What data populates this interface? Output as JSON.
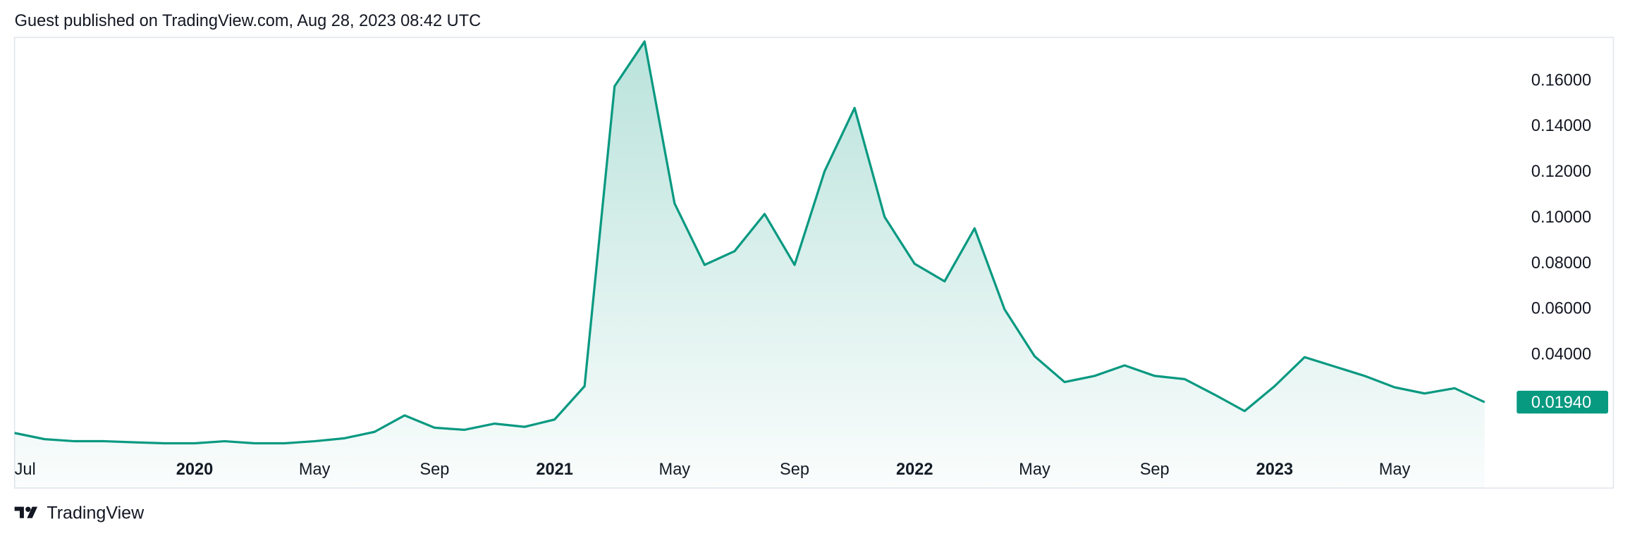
{
  "header": {
    "title": "Guest published on TradingView.com, Aug 28, 2023 08:42 UTC"
  },
  "chart_data": {
    "type": "area",
    "x": [
      "2019-07",
      "2019-08",
      "2019-09",
      "2019-10",
      "2019-11",
      "2019-12",
      "2020-01",
      "2020-02",
      "2020-03",
      "2020-04",
      "2020-05",
      "2020-06",
      "2020-07",
      "2020-08",
      "2020-09",
      "2020-10",
      "2020-11",
      "2020-12",
      "2021-01",
      "2021-02",
      "2021-03",
      "2021-04",
      "2021-05",
      "2021-06",
      "2021-07",
      "2021-08",
      "2021-09",
      "2021-10",
      "2021-11",
      "2021-12",
      "2022-01",
      "2022-02",
      "2022-03",
      "2022-04",
      "2022-05",
      "2022-06",
      "2022-07",
      "2022-08",
      "2022-09",
      "2022-10",
      "2022-11",
      "2022-12",
      "2023-01",
      "2023-02",
      "2023-03",
      "2023-04",
      "2023-05",
      "2023-06",
      "2023-07",
      "2023-08"
    ],
    "series": [
      {
        "color": "#089981",
        "values": [
          0.0059,
          0.0032,
          0.0023,
          0.0023,
          0.0018,
          0.0014,
          0.0014,
          0.0023,
          0.0014,
          0.0014,
          0.0023,
          0.0036,
          0.0064,
          0.0136,
          0.0082,
          0.0073,
          0.01,
          0.0086,
          0.0118,
          0.0264,
          0.1577,
          0.1773,
          0.1064,
          0.0795,
          0.0855,
          0.1018,
          0.0795,
          0.1205,
          0.1482,
          0.1005,
          0.08,
          0.0723,
          0.0955,
          0.06,
          0.0395,
          0.0282,
          0.0309,
          0.0355,
          0.0309,
          0.0295,
          0.0227,
          0.0155,
          0.0264,
          0.0391,
          0.035,
          0.0309,
          0.0259,
          0.0232,
          0.0255,
          0.0194
        ],
        "value_labels": [
          null,
          null,
          null,
          null,
          null,
          null,
          null,
          null,
          null,
          null,
          null,
          null,
          null,
          null,
          null,
          null,
          null,
          null,
          null,
          null,
          null,
          null,
          null,
          null,
          null,
          null,
          null,
          null,
          null,
          null,
          null,
          null,
          null,
          null,
          null,
          null,
          null,
          null,
          null,
          null,
          null,
          null,
          null,
          null,
          null,
          null,
          null,
          null,
          null,
          "0.01940"
        ]
      }
    ],
    "xlim": [
      "2019-07",
      "2023-09"
    ],
    "xticks": [
      {
        "value": "2019-07",
        "label": "Jul"
      },
      {
        "value": "2020-01",
        "label": "2020"
      },
      {
        "value": "2020-05",
        "label": "May"
      },
      {
        "value": "2020-09",
        "label": "Sep"
      },
      {
        "value": "2021-01",
        "label": "2021"
      },
      {
        "value": "2021-05",
        "label": "May"
      },
      {
        "value": "2021-09",
        "label": "Sep"
      },
      {
        "value": "2022-01",
        "label": "2022"
      },
      {
        "value": "2022-05",
        "label": "May"
      },
      {
        "value": "2022-09",
        "label": "Sep"
      },
      {
        "value": "2023-01",
        "label": "2023"
      },
      {
        "value": "2023-05",
        "label": "May"
      }
    ],
    "ylim": [
      -0.0182,
      0.1791
    ],
    "yticks": [
      {
        "value": 0.04,
        "label": "0.04000"
      },
      {
        "value": 0.06,
        "label": "0.06000"
      },
      {
        "value": 0.08,
        "label": "0.08000"
      },
      {
        "value": 0.1,
        "label": "0.10000"
      },
      {
        "value": 0.12,
        "label": "0.12000"
      },
      {
        "value": 0.14,
        "label": "0.14000"
      },
      {
        "value": 0.16,
        "label": "0.16000"
      }
    ],
    "grid": false
  },
  "footer": {
    "brand": "TradingView"
  }
}
